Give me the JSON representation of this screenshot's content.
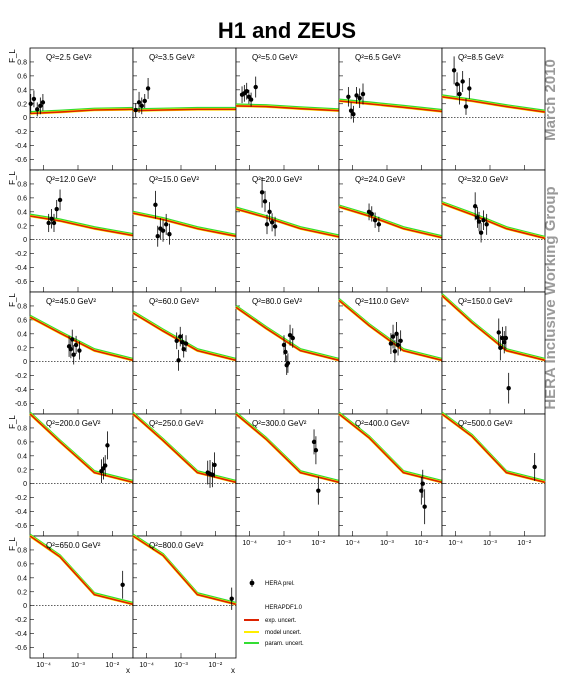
{
  "title": "H1 and ZEUS",
  "side_label_top": "March 2010",
  "side_label_bottom": "HERA Inclusive Working Group",
  "colors": {
    "exp": "#dd2200",
    "model": "#ffee00",
    "param": "#33dd33",
    "data": "#000000",
    "side_text": "#9a9a9a"
  },
  "legend": {
    "data_label": "HERA prel.",
    "pdf_label": "HERAPDF1.0",
    "exp_label": "exp. uncert.",
    "model_label": "model uncert.",
    "param_label": "param. uncert."
  },
  "chart_data": {
    "type": "scatter",
    "title": "H1 and ZEUS",
    "xlabel": "x",
    "ylabel": "F_L",
    "x_scale": "log",
    "xlim": [
      4e-05,
      0.04
    ],
    "ylim": [
      -0.75,
      1.0
    ],
    "y_ticks": [
      "-0.6",
      "-0.4",
      "-0.2",
      "0",
      "0.2",
      "0.4",
      "0.6",
      "0.8"
    ],
    "x_ticks": [
      "10⁻⁴",
      "10⁻³",
      "10⁻²"
    ],
    "x_tick_values": [
      0.0001,
      0.001,
      0.01
    ],
    "panels": [
      {
        "label": "Q²=2.5 GeV²",
        "curve": [
          [
            4e-05,
            0.06
          ],
          [
            0.0003,
            0.08
          ],
          [
            0.003,
            0.11
          ],
          [
            0.04,
            0.12
          ]
        ],
        "points": [
          [
            4.2e-05,
            0.2,
            0.14
          ],
          [
            5.2e-05,
            0.27,
            0.12
          ],
          [
            6.5e-05,
            0.12,
            0.1
          ],
          [
            8e-05,
            0.17,
            0.12
          ],
          [
            9.5e-05,
            0.22,
            0.12
          ]
        ]
      },
      {
        "label": "Q²=3.5 GeV²",
        "curve": [
          [
            4e-05,
            0.1
          ],
          [
            0.0003,
            0.11
          ],
          [
            0.003,
            0.12
          ],
          [
            0.04,
            0.12
          ]
        ],
        "points": [
          [
            4.8e-05,
            0.11,
            0.1
          ],
          [
            6e-05,
            0.22,
            0.15
          ],
          [
            7.2e-05,
            0.17,
            0.12
          ],
          [
            8.8e-05,
            0.24,
            0.1
          ],
          [
            0.00011,
            0.42,
            0.15
          ]
        ]
      },
      {
        "label": "Q²=5.0 GeV²",
        "curve": [
          [
            4e-05,
            0.17
          ],
          [
            0.0003,
            0.16
          ],
          [
            0.003,
            0.13
          ],
          [
            0.04,
            0.1
          ]
        ],
        "points": [
          [
            6e-05,
            0.33,
            0.12
          ],
          [
            7e-05,
            0.35,
            0.12
          ],
          [
            8.2e-05,
            0.38,
            0.12
          ],
          [
            9.5e-05,
            0.3,
            0.1
          ],
          [
            0.00011,
            0.26,
            0.1
          ],
          [
            0.00015,
            0.44,
            0.15
          ]
        ]
      },
      {
        "label": "Q²=6.5 GeV²",
        "curve": [
          [
            4e-05,
            0.24
          ],
          [
            0.0003,
            0.2
          ],
          [
            0.003,
            0.15
          ],
          [
            0.04,
            0.09
          ]
        ],
        "points": [
          [
            7.5e-05,
            0.3,
            0.14
          ],
          [
            9e-05,
            0.1,
            0.12
          ],
          [
            0.000105,
            0.05,
            0.12
          ],
          [
            0.00013,
            0.32,
            0.12
          ],
          [
            0.00016,
            0.28,
            0.14
          ],
          [
            0.0002,
            0.34,
            0.15
          ]
        ]
      },
      {
        "label": "Q²=8.5 GeV²",
        "curve": [
          [
            4e-05,
            0.3
          ],
          [
            0.0003,
            0.24
          ],
          [
            0.003,
            0.16
          ],
          [
            0.04,
            0.08
          ]
        ],
        "points": [
          [
            9e-05,
            0.68,
            0.2
          ],
          [
            0.00011,
            0.48,
            0.17
          ],
          [
            0.00013,
            0.34,
            0.15
          ],
          [
            0.00016,
            0.52,
            0.15
          ],
          [
            0.0002,
            0.16,
            0.12
          ],
          [
            0.00025,
            0.42,
            0.15
          ]
        ]
      },
      {
        "label": "Q²=12.0 GeV²",
        "curve": [
          [
            4e-05,
            0.34
          ],
          [
            0.0003,
            0.27
          ],
          [
            0.003,
            0.16
          ],
          [
            0.04,
            0.06
          ]
        ],
        "points": [
          [
            0.00014,
            0.24,
            0.13
          ],
          [
            0.00017,
            0.3,
            0.14
          ],
          [
            0.0002,
            0.24,
            0.13
          ],
          [
            0.00024,
            0.44,
            0.13
          ],
          [
            0.0003,
            0.57,
            0.15
          ]
        ]
      },
      {
        "label": "Q²=15.0 GeV²",
        "curve": [
          [
            4e-05,
            0.38
          ],
          [
            0.0003,
            0.29
          ],
          [
            0.003,
            0.16
          ],
          [
            0.04,
            0.05
          ]
        ],
        "points": [
          [
            0.00018,
            0.5,
            0.2
          ],
          [
            0.00021,
            0.05,
            0.15
          ],
          [
            0.00025,
            0.16,
            0.15
          ],
          [
            0.0003,
            0.13,
            0.16
          ],
          [
            0.00037,
            0.22,
            0.15
          ],
          [
            0.00046,
            0.08,
            0.15
          ]
        ]
      },
      {
        "label": "Q²=20.0 GeV²",
        "curve": [
          [
            4e-05,
            0.44
          ],
          [
            0.0003,
            0.32
          ],
          [
            0.003,
            0.16
          ],
          [
            0.04,
            0.04
          ]
        ],
        "points": [
          [
            0.00023,
            0.68,
            0.22
          ],
          [
            0.00028,
            0.55,
            0.15
          ],
          [
            0.00032,
            0.22,
            0.14
          ],
          [
            0.00038,
            0.4,
            0.14
          ],
          [
            0.00045,
            0.25,
            0.13
          ],
          [
            0.00055,
            0.19,
            0.14
          ]
        ]
      },
      {
        "label": "Q²=24.0 GeV²",
        "curve": [
          [
            4e-05,
            0.47
          ],
          [
            0.0003,
            0.34
          ],
          [
            0.003,
            0.16
          ],
          [
            0.04,
            0.03
          ]
        ],
        "points": [
          [
            0.0003,
            0.4,
            0.12
          ],
          [
            0.00036,
            0.37,
            0.11
          ],
          [
            0.00045,
            0.28,
            0.11
          ],
          [
            0.00058,
            0.22,
            0.11
          ]
        ]
      },
      {
        "label": "Q²=32.0 GeV²",
        "curve": [
          [
            4e-05,
            0.52
          ],
          [
            0.0003,
            0.36
          ],
          [
            0.003,
            0.16
          ],
          [
            0.04,
            0.02
          ]
        ],
        "points": [
          [
            0.00037,
            0.48,
            0.2
          ],
          [
            0.00043,
            0.32,
            0.15
          ],
          [
            0.00048,
            0.26,
            0.14
          ],
          [
            0.00055,
            0.1,
            0.14
          ],
          [
            0.00065,
            0.28,
            0.14
          ],
          [
            0.0008,
            0.22,
            0.15
          ]
        ]
      },
      {
        "label": "Q²=45.0 GeV²",
        "curve": [
          [
            4e-05,
            0.64
          ],
          [
            0.0003,
            0.41
          ],
          [
            0.003,
            0.16
          ],
          [
            0.04,
            0.02
          ]
        ],
        "points": [
          [
            0.00055,
            0.22,
            0.15
          ],
          [
            0.00062,
            0.18,
            0.13
          ],
          [
            0.00068,
            0.32,
            0.14
          ],
          [
            0.00075,
            0.1,
            0.14
          ],
          [
            0.00088,
            0.24,
            0.13
          ],
          [
            0.0011,
            0.16,
            0.13
          ]
        ]
      },
      {
        "label": "Q²=60.0 GeV²",
        "curve": [
          [
            4e-05,
            0.7
          ],
          [
            0.0003,
            0.44
          ],
          [
            0.003,
            0.16
          ],
          [
            0.04,
            0.02
          ]
        ],
        "points": [
          [
            0.00075,
            0.3,
            0.12
          ],
          [
            0.00085,
            0.02,
            0.15
          ],
          [
            0.00095,
            0.36,
            0.14
          ],
          [
            0.0011,
            0.28,
            0.12
          ],
          [
            0.0012,
            0.18,
            0.12
          ],
          [
            0.0014,
            0.26,
            0.12
          ]
        ]
      },
      {
        "label": "Q²=80.0 GeV²",
        "curve": [
          [
            4e-05,
            0.78
          ],
          [
            0.0003,
            0.48
          ],
          [
            0.003,
            0.16
          ],
          [
            0.04,
            0.02
          ]
        ],
        "points": [
          [
            0.001,
            0.24,
            0.14
          ],
          [
            0.0011,
            0.14,
            0.14
          ],
          [
            0.0012,
            -0.05,
            0.14
          ],
          [
            0.0013,
            -0.02,
            0.14
          ],
          [
            0.0015,
            0.38,
            0.15
          ],
          [
            0.0018,
            0.34,
            0.14
          ]
        ]
      },
      {
        "label": "Q²=110.0 GeV²",
        "curve": [
          [
            4e-05,
            0.88
          ],
          [
            0.0003,
            0.52
          ],
          [
            0.003,
            0.16
          ],
          [
            0.04,
            0.02
          ]
        ],
        "points": [
          [
            0.0013,
            0.26,
            0.15
          ],
          [
            0.0015,
            0.36,
            0.17
          ],
          [
            0.0017,
            0.15,
            0.16
          ],
          [
            0.0019,
            0.4,
            0.17
          ],
          [
            0.0021,
            0.24,
            0.15
          ],
          [
            0.0025,
            0.3,
            0.15
          ]
        ]
      },
      {
        "label": "Q²=150.0 GeV²",
        "curve": [
          [
            4e-05,
            0.95
          ],
          [
            0.0003,
            0.56
          ],
          [
            0.003,
            0.16
          ],
          [
            0.04,
            0.02
          ]
        ],
        "points": [
          [
            0.0018,
            0.42,
            0.2
          ],
          [
            0.002,
            0.2,
            0.18
          ],
          [
            0.0023,
            0.34,
            0.16
          ],
          [
            0.0026,
            0.28,
            0.16
          ],
          [
            0.0029,
            0.34,
            0.17
          ],
          [
            0.0035,
            -0.38,
            0.22
          ]
        ]
      },
      {
        "label": "Q²=200.0 GeV²",
        "curve": [
          [
            4e-05,
            1.0
          ],
          [
            0.0003,
            0.6
          ],
          [
            0.003,
            0.16
          ],
          [
            0.04,
            0.02
          ]
        ],
        "points": [
          [
            0.0048,
            0.18,
            0.17
          ],
          [
            0.0055,
            0.22,
            0.16
          ],
          [
            0.0062,
            0.26,
            0.15
          ],
          [
            0.0072,
            0.55,
            0.2
          ]
        ]
      },
      {
        "label": "Q²=250.0 GeV²",
        "curve": [
          [
            4e-05,
            1.0
          ],
          [
            0.0003,
            0.62
          ],
          [
            0.003,
            0.16
          ],
          [
            0.04,
            0.02
          ]
        ],
        "points": [
          [
            0.006,
            0.16,
            0.17
          ],
          [
            0.007,
            0.14,
            0.2
          ],
          [
            0.0082,
            0.13,
            0.18
          ],
          [
            0.0095,
            0.27,
            0.18
          ]
        ]
      },
      {
        "label": "Q²=300.0 GeV²",
        "curve": [
          [
            4e-05,
            1.0
          ],
          [
            0.0003,
            0.64
          ],
          [
            0.003,
            0.16
          ],
          [
            0.04,
            0.02
          ]
        ],
        "points": [
          [
            0.0075,
            0.6,
            0.18
          ],
          [
            0.0085,
            0.48,
            0.2
          ],
          [
            0.01,
            -0.1,
            0.2
          ]
        ]
      },
      {
        "label": "Q²=400.0 GeV²",
        "curve": [
          [
            4e-05,
            1.0
          ],
          [
            0.0003,
            0.66
          ],
          [
            0.003,
            0.16
          ],
          [
            0.04,
            0.02
          ]
        ],
        "points": [
          [
            0.01,
            -0.1,
            0.2
          ],
          [
            0.011,
            0.0,
            0.2
          ],
          [
            0.0125,
            -0.33,
            0.25
          ]
        ]
      },
      {
        "label": "Q²=500.0 GeV²",
        "curve": [
          [
            4e-05,
            1.0
          ],
          [
            0.0003,
            0.68
          ],
          [
            0.003,
            0.16
          ],
          [
            0.04,
            0.02
          ]
        ],
        "points": [
          [
            0.02,
            0.24,
            0.2
          ]
        ]
      },
      {
        "label": "Q²=650.0 GeV²",
        "curve": [
          [
            4e-05,
            1.0
          ],
          [
            0.0003,
            0.7
          ],
          [
            0.003,
            0.16
          ],
          [
            0.04,
            0.02
          ]
        ],
        "points": [
          [
            0.02,
            0.3,
            0.2
          ]
        ]
      },
      {
        "label": "Q²=800.0 GeV²",
        "curve": [
          [
            4e-05,
            1.0
          ],
          [
            0.0003,
            0.72
          ],
          [
            0.003,
            0.16
          ],
          [
            0.04,
            0.02
          ]
        ],
        "points": [
          [
            0.03,
            0.1,
            0.16
          ]
        ]
      }
    ]
  }
}
